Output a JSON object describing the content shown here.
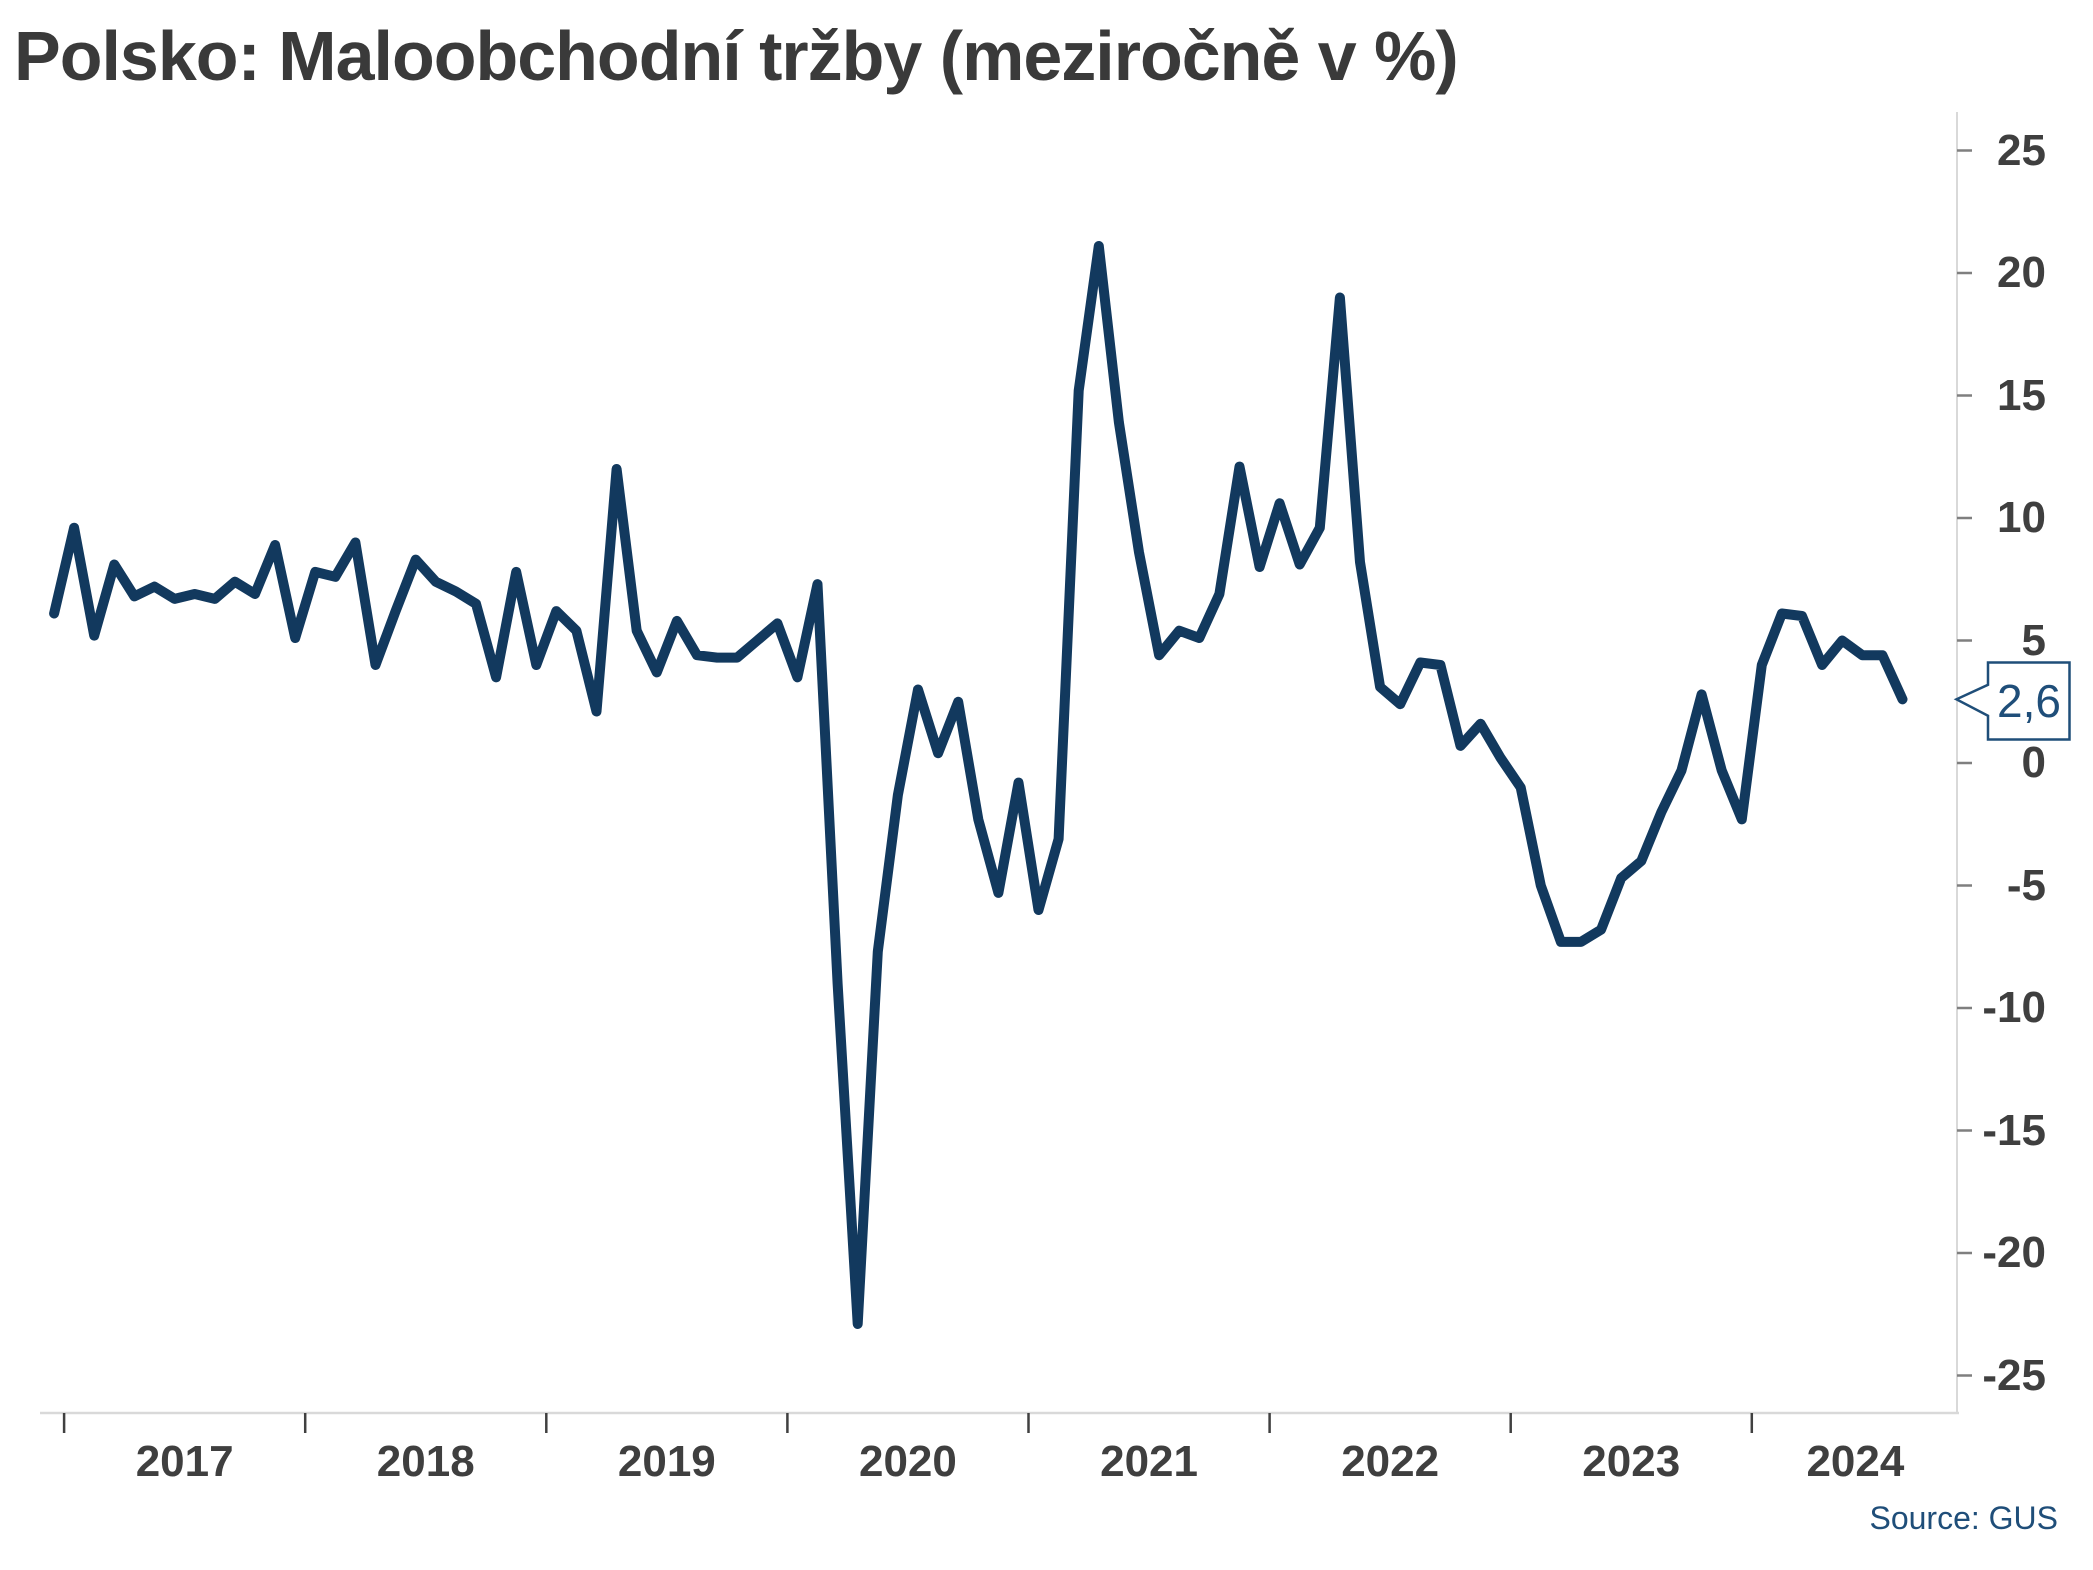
{
  "title": "Polsko: Maloobchodní tržby (meziročně v %)",
  "source_note": "Source: GUS",
  "callout": {
    "label": "2,6",
    "value": 2.6
  },
  "colors": {
    "background": "#ffffff",
    "line": "#12395e",
    "axis_line": "#d9d9d9",
    "x_tick": "#404040",
    "y_tick": "#7f7f7f",
    "label_text": "#3f3f3f",
    "callout": "#1f4e79",
    "source_text": "#1f4e79"
  },
  "chart_data": {
    "type": "line",
    "title": "Polsko: Maloobchodní tržby (meziročně v %)",
    "ylabel": "meziročně v %",
    "unit": "%",
    "frequency": "monthly",
    "start_period": "2016-12",
    "end_period": "2024-08",
    "grid": false,
    "legend_position": "none",
    "y_axis_side": "right",
    "ylim": [
      -26.5,
      27.1
    ],
    "y_ticks": [
      25,
      20,
      15,
      10,
      5,
      0,
      -5,
      -10,
      -15,
      -20,
      -25
    ],
    "x_tick_labels": [
      "2017",
      "2018",
      "2019",
      "2020",
      "2021",
      "2022",
      "2023",
      "2024"
    ],
    "last_value_label": "2,6",
    "series": [
      {
        "name": "Maloobchodní tržby, meziročně v %",
        "values": [
          6.1,
          9.6,
          5.2,
          8.1,
          6.8,
          7.2,
          6.7,
          6.9,
          6.7,
          7.4,
          6.9,
          8.9,
          5.1,
          7.8,
          7.6,
          9.0,
          4.0,
          6.2,
          8.3,
          7.4,
          7.0,
          6.5,
          3.5,
          7.8,
          4.0,
          6.2,
          5.4,
          2.1,
          12.0,
          5.4,
          3.7,
          5.8,
          4.4,
          4.3,
          4.3,
          5.0,
          5.7,
          3.5,
          7.3,
          -9.0,
          -22.9,
          -7.7,
          -1.3,
          3.0,
          0.4,
          2.5,
          -2.3,
          -5.3,
          -0.8,
          -6.0,
          -3.1,
          15.2,
          21.1,
          13.9,
          8.6,
          4.4,
          5.4,
          5.1,
          6.9,
          12.1,
          8.0,
          10.6,
          8.1,
          9.6,
          19.0,
          8.2,
          3.1,
          2.4,
          4.1,
          4.0,
          0.7,
          1.6,
          0.2,
          -1.0,
          -5.0,
          -7.3,
          -7.3,
          -6.8,
          -4.7,
          -4.0,
          -2.0,
          -0.3,
          2.8,
          -0.3,
          -2.3,
          4.0,
          6.1,
          6.0,
          4.0,
          5.0,
          4.4,
          4.4,
          2.6
        ]
      }
    ]
  }
}
